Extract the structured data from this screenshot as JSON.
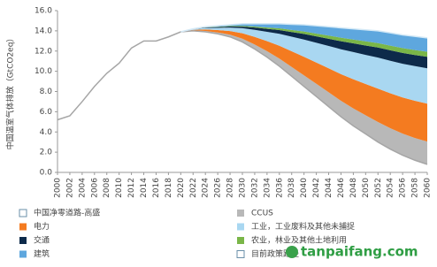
{
  "chart_data": {
    "type": "stacked-area",
    "y_label": "中国温室气体排放（GtCO2eq）",
    "x": [
      2000,
      2002,
      2004,
      2006,
      2008,
      2010,
      2012,
      2014,
      2016,
      2018,
      2020,
      2022,
      2024,
      2026,
      2028,
      2030,
      2032,
      2034,
      2036,
      2038,
      2040,
      2042,
      2044,
      2046,
      2048,
      2050,
      2052,
      2054,
      2056,
      2058,
      2060
    ],
    "xlim": [
      2000,
      2060
    ],
    "xticks": [
      2000,
      2002,
      2004,
      2006,
      2008,
      2010,
      2012,
      2014,
      2016,
      2018,
      2020,
      2022,
      2024,
      2026,
      2028,
      2030,
      2032,
      2034,
      2036,
      2038,
      2040,
      2042,
      2044,
      2046,
      2048,
      2050,
      2052,
      2054,
      2056,
      2058,
      2060
    ],
    "ylim": [
      0,
      16
    ],
    "yticks": [
      {
        "value": 0,
        "label": "0.0"
      },
      {
        "value": 2,
        "label": "2.0"
      },
      {
        "value": 4,
        "label": "4.0"
      },
      {
        "value": 6,
        "label": "6.0"
      },
      {
        "value": 8,
        "label": "8.0"
      },
      {
        "value": 10,
        "label": "10.0"
      },
      {
        "value": 12,
        "label": "12.0"
      },
      {
        "value": 14,
        "label": "14.0"
      },
      {
        "value": 16,
        "label": "16.0"
      }
    ],
    "series": [
      {
        "name": "中国净零道路-高盛",
        "kind": "line",
        "color": "#a6a6a6",
        "values": [
          5.2,
          5.6,
          7.0,
          8.5,
          9.8,
          10.8,
          12.3,
          13.0,
          13.0,
          13.4,
          13.9,
          14.0,
          13.9,
          13.7,
          13.4,
          12.9,
          12.2,
          11.4,
          10.5,
          9.5,
          8.5,
          7.5,
          6.5,
          5.5,
          4.6,
          3.8,
          3.0,
          2.3,
          1.7,
          1.2,
          0.8
        ]
      },
      {
        "name": "CCUS",
        "kind": "area",
        "color": "#b8b8b8",
        "values": [
          null,
          null,
          null,
          null,
          null,
          null,
          null,
          null,
          null,
          null,
          0,
          0.04,
          0.09,
          0.14,
          0.22,
          0.32,
          0.45,
          0.59,
          0.76,
          0.93,
          1.1,
          1.26,
          1.42,
          1.58,
          1.73,
          1.85,
          1.98,
          2.07,
          2.14,
          2.2,
          2.25
        ]
      },
      {
        "name": "电力",
        "kind": "area",
        "color": "#f47b20",
        "values": [
          null,
          null,
          null,
          null,
          null,
          null,
          null,
          null,
          null,
          null,
          0,
          0.06,
          0.15,
          0.24,
          0.36,
          0.54,
          0.75,
          0.99,
          1.26,
          1.55,
          1.83,
          2.1,
          2.37,
          2.64,
          2.88,
          3.09,
          3.3,
          3.45,
          3.57,
          3.68,
          3.75
        ]
      },
      {
        "name": "工业，工业废料及其他未捕捉",
        "kind": "area",
        "color": "#a9d7f1",
        "values": [
          null,
          null,
          null,
          null,
          null,
          null,
          null,
          null,
          null,
          null,
          0,
          0.06,
          0.14,
          0.22,
          0.34,
          0.5,
          0.7,
          0.92,
          1.18,
          1.44,
          1.71,
          1.96,
          2.21,
          2.46,
          2.69,
          2.88,
          3.08,
          3.22,
          3.33,
          3.43,
          3.5
        ]
      },
      {
        "name": "交通",
        "kind": "area",
        "color": "#0d2a4a",
        "values": [
          null,
          null,
          null,
          null,
          null,
          null,
          null,
          null,
          null,
          null,
          0,
          0.02,
          0.05,
          0.07,
          0.11,
          0.16,
          0.23,
          0.3,
          0.38,
          0.46,
          0.55,
          0.63,
          0.71,
          0.79,
          0.86,
          0.93,
          0.99,
          1.04,
          1.07,
          1.1,
          1.13
        ]
      },
      {
        "name": "农业，林业及其他土地利用",
        "kind": "area",
        "color": "#7ab648",
        "values": [
          null,
          null,
          null,
          null,
          null,
          null,
          null,
          null,
          null,
          null,
          0,
          0.01,
          0.02,
          0.03,
          0.05,
          0.07,
          0.1,
          0.13,
          0.17,
          0.21,
          0.24,
          0.28,
          0.32,
          0.35,
          0.38,
          0.41,
          0.44,
          0.46,
          0.48,
          0.49,
          0.5
        ]
      },
      {
        "name": "建筑",
        "kind": "area",
        "color": "#5ea7de",
        "values": [
          null,
          null,
          null,
          null,
          null,
          null,
          null,
          null,
          null,
          null,
          0,
          0.01,
          0.05,
          0.1,
          0.12,
          0.21,
          0.27,
          0.37,
          0.45,
          0.56,
          0.67,
          0.77,
          0.87,
          0.98,
          1.06,
          1.14,
          1.21,
          1.26,
          1.31,
          1.35,
          1.37
        ]
      },
      {
        "name": "目前政策路径",
        "kind": "line",
        "color": "#d4e9f6",
        "values": [
          null,
          null,
          null,
          null,
          null,
          null,
          null,
          null,
          null,
          null,
          13.9,
          14.2,
          14.4,
          14.5,
          14.6,
          14.7,
          14.7,
          14.7,
          14.7,
          14.65,
          14.6,
          14.5,
          14.4,
          14.3,
          14.2,
          14.1,
          14.0,
          13.8,
          13.6,
          13.45,
          13.3
        ]
      }
    ],
    "watermark": "tanpaifang.com"
  }
}
